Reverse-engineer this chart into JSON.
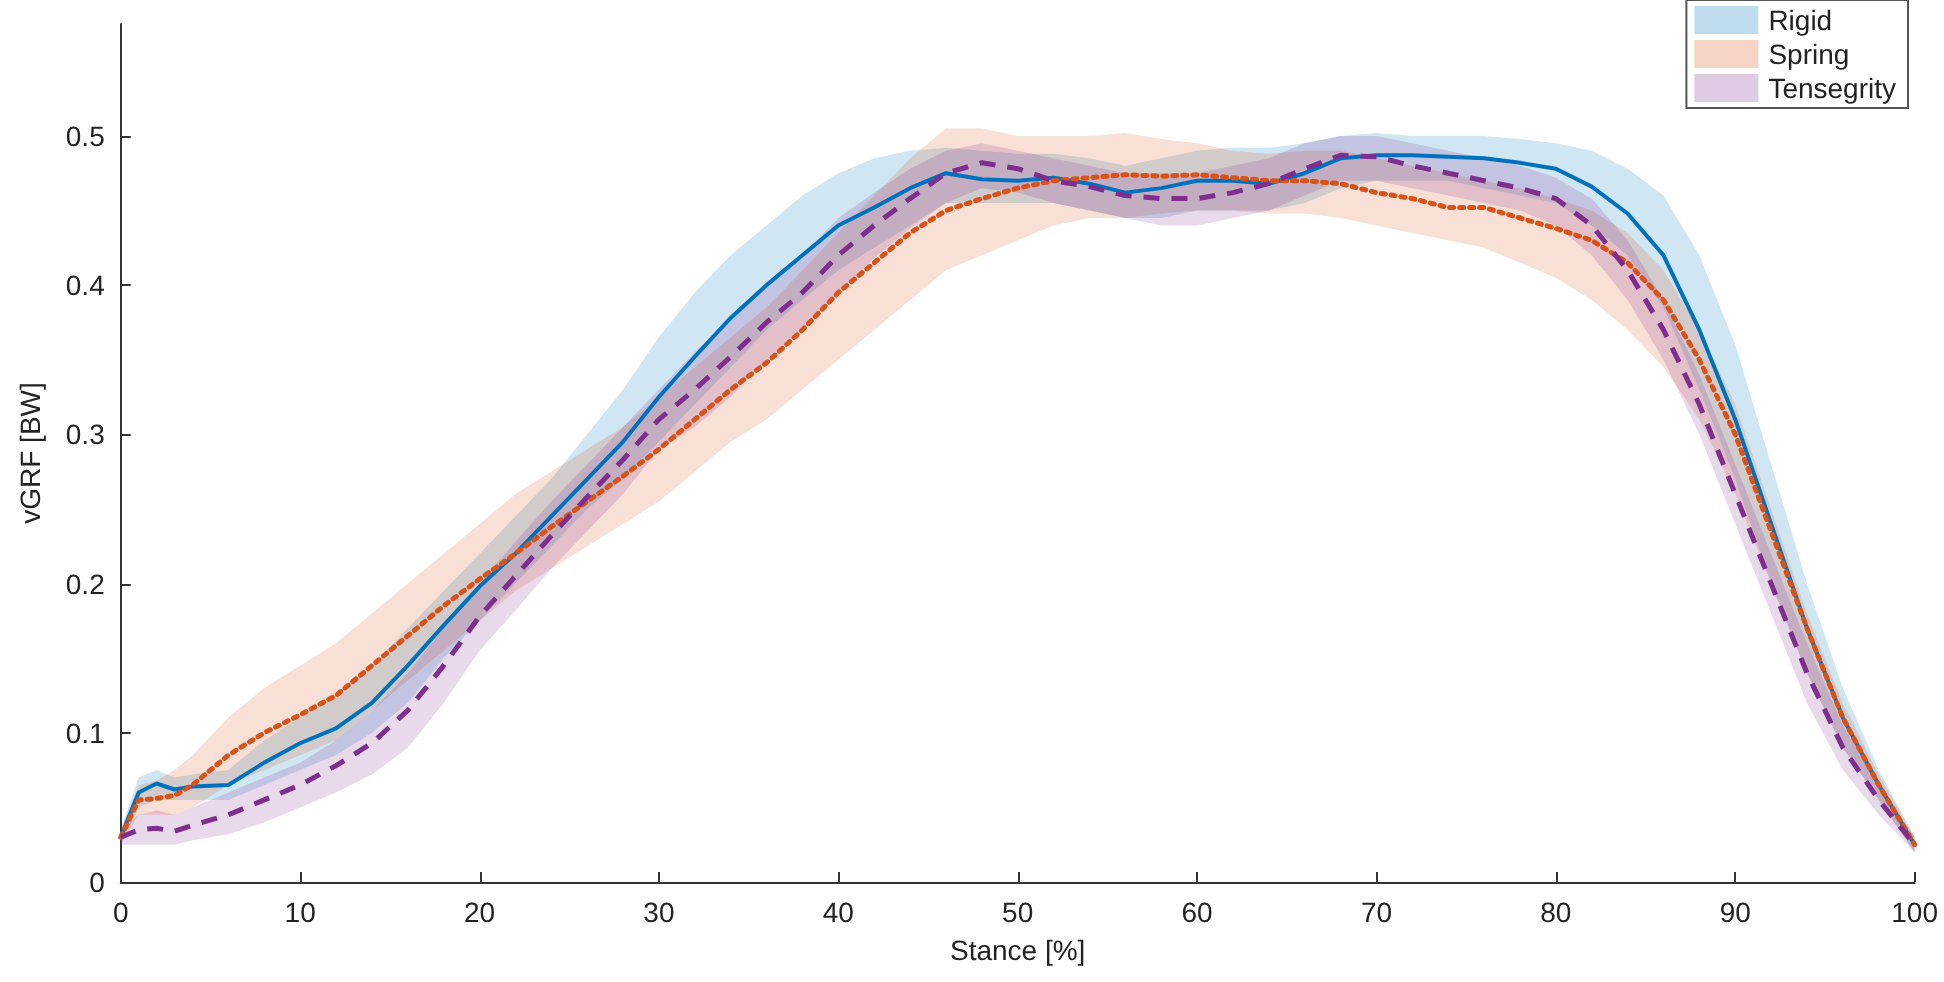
{
  "chart_data": {
    "type": "line",
    "xlabel": "Stance [%]",
    "ylabel": "vGRF [BW]",
    "x": [
      0,
      1,
      2,
      3,
      4,
      6,
      8,
      10,
      12,
      14,
      16,
      18,
      20,
      22,
      24,
      26,
      28,
      30,
      32,
      34,
      36,
      38,
      40,
      42,
      44,
      46,
      48,
      50,
      52,
      54,
      56,
      58,
      60,
      62,
      64,
      66,
      68,
      70,
      72,
      74,
      76,
      78,
      80,
      82,
      84,
      86,
      88,
      90,
      92,
      94,
      96,
      98,
      100
    ],
    "xlim": [
      0,
      100
    ],
    "xticks": [
      0,
      10,
      20,
      30,
      40,
      50,
      60,
      70,
      80,
      90,
      100
    ],
    "ylim": [
      0,
      0.575
    ],
    "yticks": [
      0,
      0.1,
      0.2,
      0.3,
      0.4,
      0.5
    ],
    "grid": false,
    "legend": "top right",
    "series": [
      {
        "name": "Rigid",
        "color": "#0072bd",
        "line_style": "solid",
        "values": [
          0.03,
          0.06,
          0.066,
          0.062,
          0.064,
          0.065,
          0.08,
          0.093,
          0.103,
          0.12,
          0.145,
          0.172,
          0.198,
          0.22,
          0.245,
          0.27,
          0.295,
          0.325,
          0.352,
          0.378,
          0.4,
          0.42,
          0.44,
          0.452,
          0.465,
          0.475,
          0.471,
          0.47,
          0.472,
          0.468,
          0.462,
          0.465,
          0.47,
          0.47,
          0.468,
          0.475,
          0.485,
          0.487,
          0.487,
          0.486,
          0.485,
          0.482,
          0.478,
          0.466,
          0.448,
          0.42,
          0.37,
          0.31,
          0.24,
          0.17,
          0.11,
          0.065,
          0.025
        ],
        "lower": [
          0.025,
          0.05,
          0.055,
          0.055,
          0.055,
          0.055,
          0.065,
          0.075,
          0.085,
          0.1,
          0.12,
          0.15,
          0.175,
          0.2,
          0.225,
          0.25,
          0.27,
          0.295,
          0.32,
          0.345,
          0.37,
          0.39,
          0.41,
          0.425,
          0.44,
          0.455,
          0.455,
          0.455,
          0.455,
          0.45,
          0.445,
          0.445,
          0.45,
          0.45,
          0.45,
          0.455,
          0.465,
          0.47,
          0.47,
          0.47,
          0.465,
          0.46,
          0.455,
          0.44,
          0.42,
          0.385,
          0.33,
          0.27,
          0.2,
          0.14,
          0.09,
          0.055,
          0.02
        ],
        "upper": [
          0.035,
          0.07,
          0.075,
          0.07,
          0.072,
          0.075,
          0.095,
          0.11,
          0.125,
          0.145,
          0.17,
          0.195,
          0.22,
          0.245,
          0.27,
          0.3,
          0.33,
          0.365,
          0.395,
          0.42,
          0.44,
          0.46,
          0.475,
          0.485,
          0.49,
          0.492,
          0.49,
          0.488,
          0.488,
          0.485,
          0.48,
          0.485,
          0.49,
          0.492,
          0.492,
          0.495,
          0.5,
          0.502,
          0.5,
          0.5,
          0.5,
          0.498,
          0.495,
          0.49,
          0.478,
          0.46,
          0.42,
          0.36,
          0.28,
          0.2,
          0.13,
          0.075,
          0.03
        ]
      },
      {
        "name": "Spring",
        "color": "#d95319",
        "line_style": "dotted",
        "values": [
          0.03,
          0.055,
          0.056,
          0.058,
          0.065,
          0.085,
          0.1,
          0.112,
          0.125,
          0.145,
          0.165,
          0.185,
          0.203,
          0.22,
          0.238,
          0.255,
          0.272,
          0.29,
          0.31,
          0.33,
          0.348,
          0.37,
          0.395,
          0.415,
          0.435,
          0.45,
          0.458,
          0.465,
          0.47,
          0.472,
          0.474,
          0.473,
          0.474,
          0.472,
          0.47,
          0.47,
          0.468,
          0.462,
          0.458,
          0.452,
          0.452,
          0.445,
          0.438,
          0.43,
          0.415,
          0.39,
          0.35,
          0.3,
          0.235,
          0.17,
          0.11,
          0.065,
          0.025
        ],
        "lower": [
          0.025,
          0.045,
          0.045,
          0.045,
          0.05,
          0.065,
          0.075,
          0.085,
          0.095,
          0.115,
          0.135,
          0.155,
          0.175,
          0.195,
          0.21,
          0.225,
          0.24,
          0.255,
          0.275,
          0.295,
          0.31,
          0.33,
          0.35,
          0.37,
          0.39,
          0.41,
          0.42,
          0.43,
          0.44,
          0.445,
          0.445,
          0.448,
          0.45,
          0.45,
          0.448,
          0.448,
          0.445,
          0.44,
          0.435,
          0.43,
          0.425,
          0.415,
          0.405,
          0.39,
          0.37,
          0.345,
          0.31,
          0.26,
          0.2,
          0.14,
          0.09,
          0.055,
          0.02
        ],
        "upper": [
          0.035,
          0.065,
          0.068,
          0.075,
          0.085,
          0.11,
          0.13,
          0.145,
          0.16,
          0.18,
          0.2,
          0.22,
          0.24,
          0.26,
          0.275,
          0.29,
          0.305,
          0.325,
          0.345,
          0.365,
          0.385,
          0.41,
          0.435,
          0.46,
          0.485,
          0.505,
          0.505,
          0.5,
          0.5,
          0.5,
          0.502,
          0.498,
          0.495,
          0.49,
          0.488,
          0.49,
          0.49,
          0.485,
          0.48,
          0.475,
          0.47,
          0.465,
          0.458,
          0.45,
          0.435,
          0.41,
          0.37,
          0.32,
          0.25,
          0.18,
          0.12,
          0.072,
          0.03
        ]
      },
      {
        "name": "Tensegrity",
        "color": "#7e2f8e",
        "line_style": "dashed",
        "values": [
          0.03,
          0.035,
          0.036,
          0.034,
          0.038,
          0.045,
          0.055,
          0.065,
          0.078,
          0.093,
          0.115,
          0.145,
          0.178,
          0.205,
          0.232,
          0.258,
          0.283,
          0.31,
          0.33,
          0.352,
          0.375,
          0.395,
          0.42,
          0.44,
          0.458,
          0.475,
          0.482,
          0.478,
          0.47,
          0.466,
          0.46,
          0.458,
          0.458,
          0.462,
          0.468,
          0.478,
          0.487,
          0.486,
          0.48,
          0.475,
          0.47,
          0.465,
          0.458,
          0.44,
          0.41,
          0.37,
          0.32,
          0.26,
          0.2,
          0.14,
          0.09,
          0.055,
          0.025
        ],
        "lower": [
          0.025,
          0.025,
          0.025,
          0.025,
          0.028,
          0.032,
          0.04,
          0.05,
          0.06,
          0.072,
          0.09,
          0.12,
          0.155,
          0.182,
          0.21,
          0.235,
          0.26,
          0.29,
          0.305,
          0.325,
          0.35,
          0.37,
          0.395,
          0.418,
          0.438,
          0.455,
          0.465,
          0.462,
          0.455,
          0.45,
          0.445,
          0.44,
          0.44,
          0.445,
          0.45,
          0.46,
          0.47,
          0.47,
          0.465,
          0.46,
          0.455,
          0.45,
          0.44,
          0.42,
          0.39,
          0.35,
          0.3,
          0.24,
          0.18,
          0.12,
          0.075,
          0.045,
          0.02
        ],
        "upper": [
          0.035,
          0.045,
          0.048,
          0.045,
          0.05,
          0.06,
          0.07,
          0.08,
          0.095,
          0.115,
          0.14,
          0.17,
          0.2,
          0.228,
          0.255,
          0.28,
          0.305,
          0.33,
          0.355,
          0.378,
          0.4,
          0.42,
          0.445,
          0.462,
          0.478,
          0.49,
          0.495,
          0.49,
          0.485,
          0.48,
          0.475,
          0.475,
          0.475,
          0.48,
          0.485,
          0.495,
          0.5,
          0.5,
          0.495,
          0.49,
          0.485,
          0.48,
          0.472,
          0.458,
          0.43,
          0.39,
          0.34,
          0.28,
          0.22,
          0.16,
          0.105,
          0.065,
          0.03
        ]
      }
    ]
  }
}
